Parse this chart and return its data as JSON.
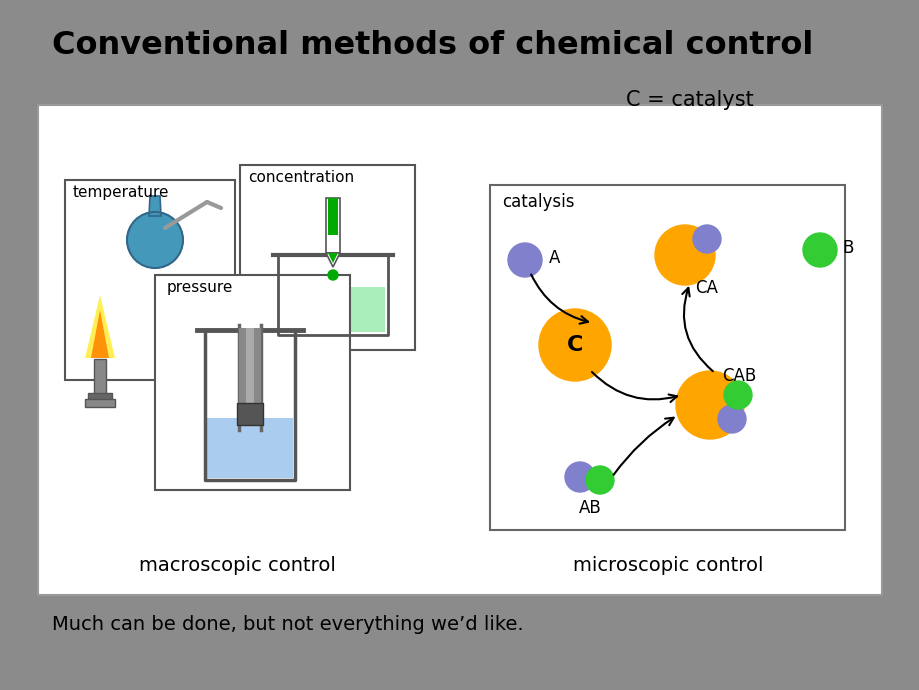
{
  "bg_color": "#8B8B8B",
  "title": "Conventional methods of chemical control",
  "title_fontsize": 23,
  "subtitle": "Much can be done, but not everything we’d like.",
  "subtitle_fontsize": 14,
  "macro_label": "macroscopic control",
  "micro_label": "microscopic control",
  "catalyst_label": "C = catalyst",
  "catalysis_label": "catalysis",
  "orange_color": "#FFA500",
  "purple_color": "#8080CC",
  "green_color": "#33CC33",
  "blue_flask_color": "#4499BB",
  "green_liquid_color": "#AAEEBB",
  "blue_liquid_color": "#AACCEE",
  "flame_yellow": "#FFEE44",
  "flame_orange": "#FF8800"
}
